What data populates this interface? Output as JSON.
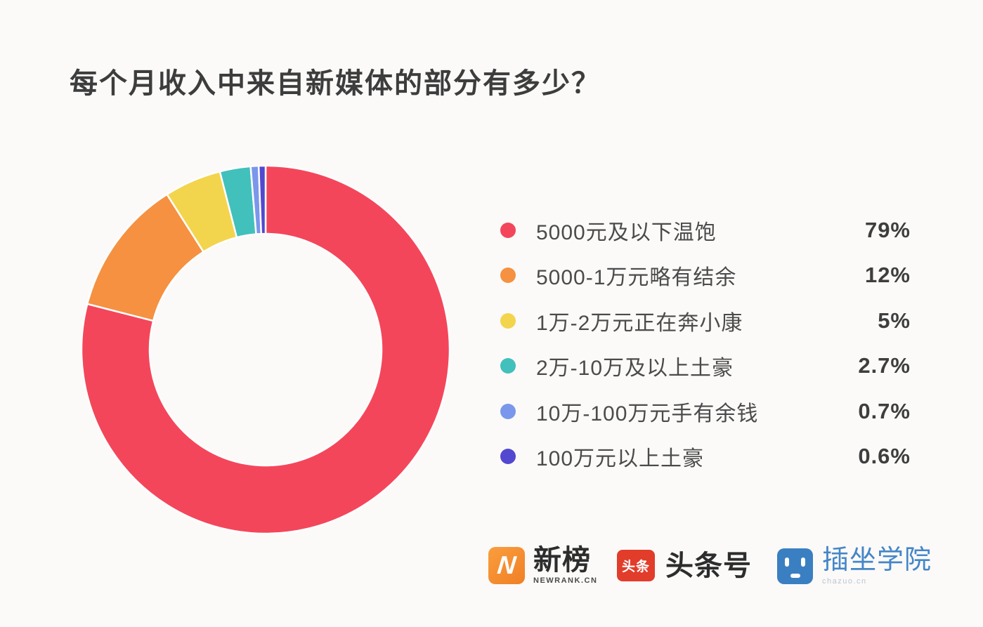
{
  "chart_data": {
    "type": "pie",
    "subtype": "donut",
    "title": "每个月收入中来自新媒体的部分有多少？",
    "legend_position": "right",
    "direction": "clockwise",
    "start_angle_deg": -90,
    "inner_radius_ratio": 0.63,
    "unit": "%",
    "categories": [
      "5000元及以下温饱",
      "5000-1万元略有结余",
      "1万-2万元正在奔小康",
      "2万-10万及以上土豪",
      "10万-100万元手有余钱",
      "100万元以上土豪"
    ],
    "values": [
      79,
      12,
      5,
      2.7,
      0.7,
      0.6
    ],
    "value_labels": [
      "79%",
      "12%",
      "5%",
      "2.7%",
      "0.7%",
      "0.6%"
    ],
    "colors": [
      "#f4465a",
      "#f59140",
      "#f3d44d",
      "#41c0bc",
      "#7b97eb",
      "#5348d0"
    ],
    "segment_gap_color": "#ffffff"
  },
  "footer": {
    "brands": [
      {
        "name": "新榜",
        "sub": "NEWRANK.CN",
        "icon_letter": "N"
      },
      {
        "name": "头条号",
        "icon_text": "头条"
      },
      {
        "name": "插坐学院",
        "sub": "chazuo.cn"
      }
    ]
  },
  "colors": {
    "background": "#fbfaf8",
    "title_text": "#3d3d3d",
    "newrank_orange_start": "#fa9e3d",
    "newrank_orange_end": "#f07f26",
    "toutiao_red": "#e23c2a",
    "chazuo_blue": "#3a7fc1",
    "chazuo_text": "#4586c8"
  }
}
